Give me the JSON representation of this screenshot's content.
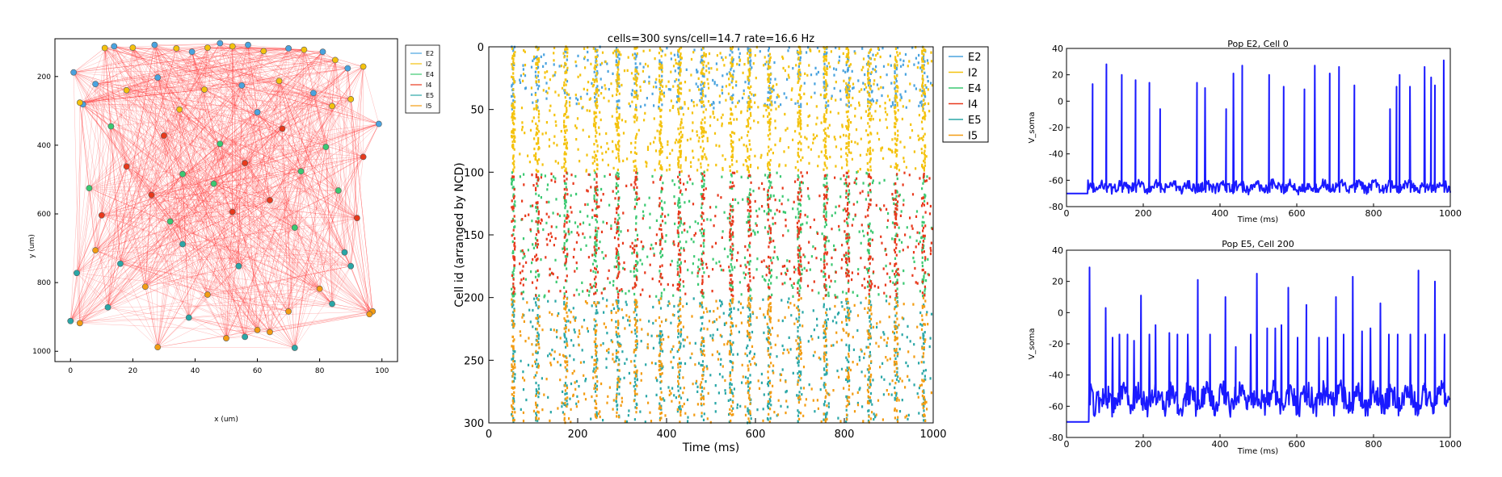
{
  "chart_data": [
    {
      "type": "scatter",
      "subtype": "network-layout",
      "xlabel": "x (um)",
      "ylabel": "y (um)",
      "xlim": [
        -5,
        105
      ],
      "ylim": [
        1030,
        90
      ],
      "y_inverted": true,
      "xticks": [
        "0",
        "20",
        "40",
        "60",
        "80",
        "100"
      ],
      "yticks": [
        "200",
        "400",
        "600",
        "800",
        "1000"
      ],
      "legend": [
        "E2",
        "I2",
        "E4",
        "I4",
        "E5",
        "I5"
      ],
      "legend_position": "outside-top-right",
      "connection_color": "#ff3030",
      "cells": [
        {
          "pop": "E2",
          "x": 1,
          "y": 188
        },
        {
          "pop": "I2",
          "x": 11,
          "y": 117
        },
        {
          "pop": "E2",
          "x": 14,
          "y": 112
        },
        {
          "pop": "I2",
          "x": 20,
          "y": 116
        },
        {
          "pop": "E2",
          "x": 27,
          "y": 108
        },
        {
          "pop": "I2",
          "x": 34,
          "y": 118
        },
        {
          "pop": "E2",
          "x": 39,
          "y": 128
        },
        {
          "pop": "I2",
          "x": 44,
          "y": 116
        },
        {
          "pop": "E2",
          "x": 48,
          "y": 103
        },
        {
          "pop": "I2",
          "x": 52,
          "y": 112
        },
        {
          "pop": "E2",
          "x": 57,
          "y": 108
        },
        {
          "pop": "I2",
          "x": 62,
          "y": 126
        },
        {
          "pop": "E2",
          "x": 70,
          "y": 118
        },
        {
          "pop": "I2",
          "x": 75,
          "y": 122
        },
        {
          "pop": "E2",
          "x": 81,
          "y": 128
        },
        {
          "pop": "I2",
          "x": 85,
          "y": 152
        },
        {
          "pop": "E2",
          "x": 89,
          "y": 176
        },
        {
          "pop": "I2",
          "x": 94,
          "y": 171
        },
        {
          "pop": "E2",
          "x": 8,
          "y": 222
        },
        {
          "pop": "I2",
          "x": 18,
          "y": 240
        },
        {
          "pop": "E2",
          "x": 28,
          "y": 203
        },
        {
          "pop": "I2",
          "x": 43,
          "y": 238
        },
        {
          "pop": "E2",
          "x": 55,
          "y": 226
        },
        {
          "pop": "I2",
          "x": 67,
          "y": 213
        },
        {
          "pop": "E2",
          "x": 78,
          "y": 248
        },
        {
          "pop": "I2",
          "x": 90,
          "y": 266
        },
        {
          "pop": "E2",
          "x": 4,
          "y": 281
        },
        {
          "pop": "I2",
          "x": 35,
          "y": 296
        },
        {
          "pop": "E2",
          "x": 60,
          "y": 304
        },
        {
          "pop": "I2",
          "x": 84,
          "y": 286
        },
        {
          "pop": "E2",
          "x": 99,
          "y": 338
        },
        {
          "pop": "I2",
          "x": 3,
          "y": 276
        },
        {
          "pop": "E4",
          "x": 13,
          "y": 345
        },
        {
          "pop": "I4",
          "x": 30,
          "y": 372
        },
        {
          "pop": "E4",
          "x": 48,
          "y": 396
        },
        {
          "pop": "I4",
          "x": 68,
          "y": 352
        },
        {
          "pop": "E4",
          "x": 82,
          "y": 405
        },
        {
          "pop": "I4",
          "x": 18,
          "y": 462
        },
        {
          "pop": "E4",
          "x": 36,
          "y": 484
        },
        {
          "pop": "I4",
          "x": 56,
          "y": 452
        },
        {
          "pop": "E4",
          "x": 74,
          "y": 476
        },
        {
          "pop": "I4",
          "x": 94,
          "y": 434
        },
        {
          "pop": "E4",
          "x": 6,
          "y": 525
        },
        {
          "pop": "I4",
          "x": 26,
          "y": 545
        },
        {
          "pop": "E4",
          "x": 46,
          "y": 512
        },
        {
          "pop": "I4",
          "x": 64,
          "y": 560
        },
        {
          "pop": "E4",
          "x": 86,
          "y": 532
        },
        {
          "pop": "I4",
          "x": 10,
          "y": 604
        },
        {
          "pop": "E4",
          "x": 32,
          "y": 622
        },
        {
          "pop": "I4",
          "x": 52,
          "y": 594
        },
        {
          "pop": "E4",
          "x": 72,
          "y": 640
        },
        {
          "pop": "I4",
          "x": 92,
          "y": 612
        },
        {
          "pop": "E5",
          "x": 2,
          "y": 772
        },
        {
          "pop": "I5",
          "x": 8,
          "y": 706
        },
        {
          "pop": "E5",
          "x": 16,
          "y": 745
        },
        {
          "pop": "I5",
          "x": 24,
          "y": 812
        },
        {
          "pop": "E5",
          "x": 36,
          "y": 688
        },
        {
          "pop": "I5",
          "x": 44,
          "y": 835
        },
        {
          "pop": "E5",
          "x": 54,
          "y": 752
        },
        {
          "pop": "I5",
          "x": 60,
          "y": 938
        },
        {
          "pop": "E5",
          "x": 72,
          "y": 990
        },
        {
          "pop": "I5",
          "x": 80,
          "y": 818
        },
        {
          "pop": "E5",
          "x": 88,
          "y": 712
        },
        {
          "pop": "I5",
          "x": 97,
          "y": 884
        },
        {
          "pop": "E5",
          "x": 0,
          "y": 912
        },
        {
          "pop": "I5",
          "x": 3,
          "y": 918
        },
        {
          "pop": "E5",
          "x": 12,
          "y": 872
        },
        {
          "pop": "I5",
          "x": 28,
          "y": 988
        },
        {
          "pop": "E5",
          "x": 38,
          "y": 902
        },
        {
          "pop": "I5",
          "x": 50,
          "y": 962
        },
        {
          "pop": "E5",
          "x": 56,
          "y": 958
        },
        {
          "pop": "I5",
          "x": 64,
          "y": 944
        },
        {
          "pop": "E5",
          "x": 84,
          "y": 862
        },
        {
          "pop": "I5",
          "x": 96,
          "y": 892
        },
        {
          "pop": "E5",
          "x": 90,
          "y": 752
        },
        {
          "pop": "I5",
          "x": 70,
          "y": 884
        }
      ]
    },
    {
      "type": "scatter",
      "subtype": "raster",
      "title": "cells=300 syns/cell=14.7 rate=16.6 Hz",
      "xlabel": "Time (ms)",
      "ylabel": "Cell id (arranged by NCD)",
      "xlim": [
        0,
        1000
      ],
      "ylim": [
        300,
        0
      ],
      "xticks": [
        "0",
        "200",
        "400",
        "600",
        "800",
        "1000"
      ],
      "yticks": [
        "0",
        "50",
        "100",
        "150",
        "200",
        "250",
        "300"
      ],
      "legend_position": "outside-top-right",
      "series": [
        {
          "name": "E2",
          "color": "#4aa3df",
          "cells": [
            0,
            50
          ]
        },
        {
          "name": "I2",
          "color": "#f4c20d",
          "cells": [
            0,
            100
          ]
        },
        {
          "name": "E4",
          "color": "#3cc972",
          "cells": [
            100,
            200
          ]
        },
        {
          "name": "I4",
          "color": "#e8391c",
          "cells": [
            100,
            200
          ]
        },
        {
          "name": "E5",
          "color": "#2aa7a7",
          "cells": [
            200,
            300
          ]
        },
        {
          "name": "I5",
          "color": "#f39c12",
          "cells": [
            200,
            300
          ]
        }
      ],
      "onset_ms": 55
    },
    {
      "type": "line",
      "title": "Pop E2, Cell 0",
      "xlabel": "Time (ms)",
      "ylabel": "V_soma",
      "xlim": [
        0,
        1000
      ],
      "ylim": [
        -80,
        40
      ],
      "xticks": [
        "0",
        "200",
        "400",
        "600",
        "800",
        "1000"
      ],
      "yticks": [
        "-80",
        "-60",
        "-40",
        "-20",
        "0",
        "20",
        "40"
      ],
      "color": "#1a1aff",
      "rest": -70,
      "onset_ms": 55,
      "baseline": -65,
      "spikes": [
        {
          "t": 68,
          "v": 13
        },
        {
          "t": 104,
          "v": 28
        },
        {
          "t": 144,
          "v": 20
        },
        {
          "t": 180,
          "v": 16
        },
        {
          "t": 216,
          "v": 14
        },
        {
          "t": 244,
          "v": -6
        },
        {
          "t": 340,
          "v": 14
        },
        {
          "t": 361,
          "v": 10
        },
        {
          "t": 416,
          "v": -6
        },
        {
          "t": 435,
          "v": 21
        },
        {
          "t": 458,
          "v": 27
        },
        {
          "t": 528,
          "v": 20
        },
        {
          "t": 566,
          "v": 11
        },
        {
          "t": 620,
          "v": 9
        },
        {
          "t": 647,
          "v": 27
        },
        {
          "t": 686,
          "v": 21
        },
        {
          "t": 710,
          "v": 26
        },
        {
          "t": 750,
          "v": 12
        },
        {
          "t": 843,
          "v": -6
        },
        {
          "t": 860,
          "v": 11
        },
        {
          "t": 868,
          "v": 20
        },
        {
          "t": 895,
          "v": 11
        },
        {
          "t": 933,
          "v": 26
        },
        {
          "t": 950,
          "v": 18
        },
        {
          "t": 960,
          "v": 12
        },
        {
          "t": 983,
          "v": 31
        }
      ]
    },
    {
      "type": "line",
      "title": "Pop E5, Cell 200",
      "xlabel": "Time (ms)",
      "ylabel": "V_soma",
      "xlim": [
        0,
        1000
      ],
      "ylim": [
        -80,
        40
      ],
      "xticks": [
        "0",
        "200",
        "400",
        "600",
        "800",
        "1000"
      ],
      "yticks": [
        "-80",
        "-60",
        "-40",
        "-20",
        "0",
        "20",
        "40"
      ],
      "color": "#1a1aff",
      "rest": -70,
      "onset_ms": 58,
      "baseline": -55,
      "spikes": [
        {
          "t": 60,
          "v": 29
        },
        {
          "t": 102,
          "v": 3
        },
        {
          "t": 120,
          "v": -16
        },
        {
          "t": 138,
          "v": -14
        },
        {
          "t": 159,
          "v": -14
        },
        {
          "t": 176,
          "v": -18
        },
        {
          "t": 194,
          "v": 11
        },
        {
          "t": 216,
          "v": -14
        },
        {
          "t": 232,
          "v": -8
        },
        {
          "t": 268,
          "v": -13
        },
        {
          "t": 289,
          "v": -14
        },
        {
          "t": 316,
          "v": -14
        },
        {
          "t": 342,
          "v": 21
        },
        {
          "t": 374,
          "v": -14
        },
        {
          "t": 414,
          "v": 10
        },
        {
          "t": 441,
          "v": -22
        },
        {
          "t": 480,
          "v": -14
        },
        {
          "t": 496,
          "v": 25
        },
        {
          "t": 523,
          "v": -10
        },
        {
          "t": 544,
          "v": -10
        },
        {
          "t": 560,
          "v": -8
        },
        {
          "t": 578,
          "v": 16
        },
        {
          "t": 602,
          "v": -16
        },
        {
          "t": 625,
          "v": 5
        },
        {
          "t": 658,
          "v": -16
        },
        {
          "t": 680,
          "v": -16
        },
        {
          "t": 702,
          "v": 10
        },
        {
          "t": 722,
          "v": -14
        },
        {
          "t": 746,
          "v": 23
        },
        {
          "t": 770,
          "v": -12
        },
        {
          "t": 792,
          "v": -10
        },
        {
          "t": 818,
          "v": 6
        },
        {
          "t": 840,
          "v": -14
        },
        {
          "t": 863,
          "v": -14
        },
        {
          "t": 896,
          "v": -14
        },
        {
          "t": 917,
          "v": 27
        },
        {
          "t": 935,
          "v": -14
        },
        {
          "t": 960,
          "v": 20
        },
        {
          "t": 985,
          "v": -14
        }
      ]
    }
  ]
}
